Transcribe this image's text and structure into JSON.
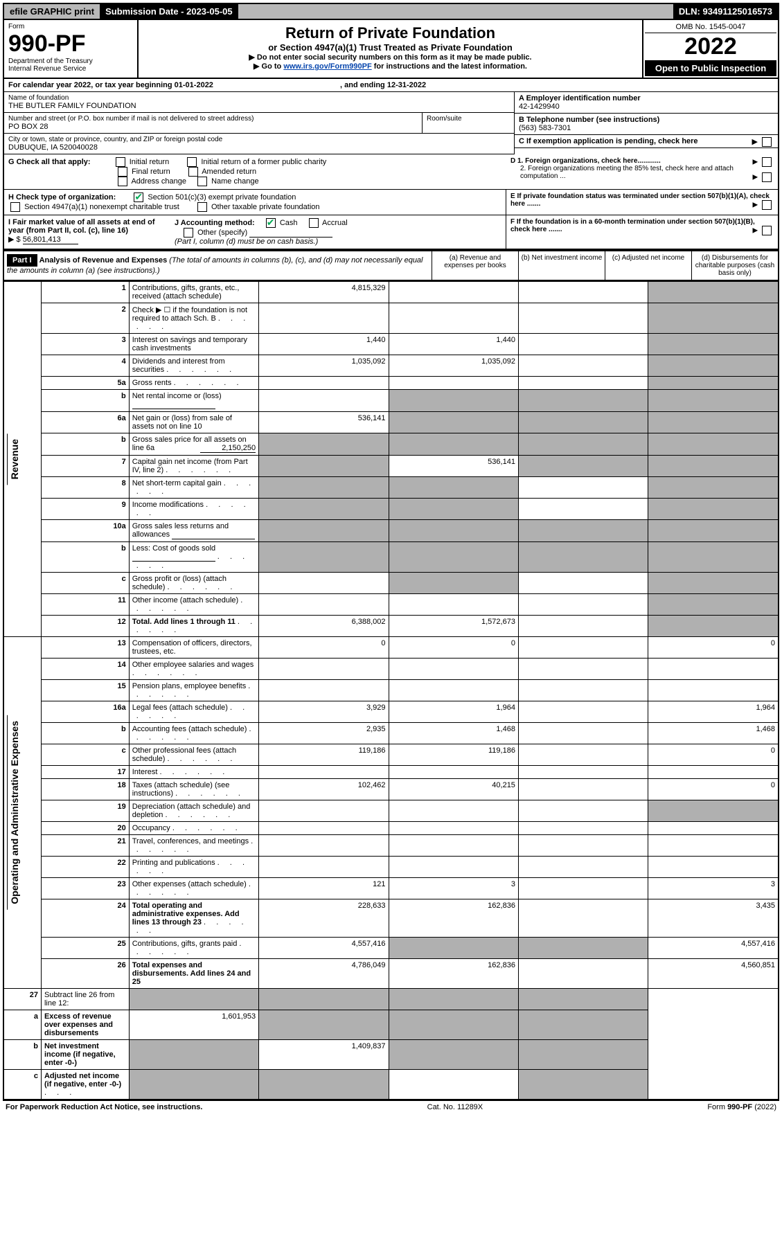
{
  "topbar": {
    "efile": "efile GRAPHIC print",
    "subdate_label": "Submission Date - ",
    "subdate": "2023-05-05",
    "dln_label": "DLN: ",
    "dln": "93491125016573"
  },
  "header": {
    "form_label": "Form",
    "form_no": "990-PF",
    "dept": "Department of the Treasury",
    "irs": "Internal Revenue Service",
    "title": "Return of Private Foundation",
    "subtitle": "or Section 4947(a)(1) Trust Treated as Private Foundation",
    "instr1": "▶ Do not enter social security numbers on this form as it may be made public.",
    "instr2_pre": "▶ Go to ",
    "instr2_link": "www.irs.gov/Form990PF",
    "instr2_post": " for instructions and the latest information.",
    "omb": "OMB No. 1545-0047",
    "year": "2022",
    "open": "Open to Public Inspection"
  },
  "calendar": {
    "text_pre": "For calendar year 2022, or tax year beginning ",
    "begin": "01-01-2022",
    "text_mid": " , and ending ",
    "end": "12-31-2022"
  },
  "entity": {
    "name_label": "Name of foundation",
    "name": "THE BUTLER FAMILY FOUNDATION",
    "addr_label": "Number and street (or P.O. box number if mail is not delivered to street address)",
    "addr": "PO BOX 28",
    "room_label": "Room/suite",
    "city_label": "City or town, state or province, country, and ZIP or foreign postal code",
    "city": "DUBUQUE, IA  520040028",
    "ein_label": "A Employer identification number",
    "ein": "42-1429940",
    "phone_label": "B Telephone number (see instructions)",
    "phone": "(563) 583-7301",
    "c_label": "C If exemption application is pending, check here",
    "d1": "D 1. Foreign organizations, check here............",
    "d2": "2. Foreign organizations meeting the 85% test, check here and attach computation ...",
    "e_label": "E  If private foundation status was terminated under section 507(b)(1)(A), check here .......",
    "f_label": "F  If the foundation is in a 60-month termination under section 507(b)(1)(B), check here ......."
  },
  "g": {
    "label": "G Check all that apply:",
    "opts": [
      "Initial return",
      "Initial return of a former public charity",
      "Final return",
      "Amended return",
      "Address change",
      "Name change"
    ]
  },
  "h": {
    "label": "H Check type of organization:",
    "opt1": "Section 501(c)(3) exempt private foundation",
    "opt2": "Section 4947(a)(1) nonexempt charitable trust",
    "opt3": "Other taxable private foundation"
  },
  "i": {
    "label": "I Fair market value of all assets at end of year (from Part II, col. (c), line 16)",
    "value": "56,801,413",
    "j_label": "J Accounting method:",
    "j_cash": "Cash",
    "j_accrual": "Accrual",
    "j_other": "Other (specify)",
    "j_note": "(Part I, column (d) must be on cash basis.)"
  },
  "part1": {
    "label": "Part I",
    "title": "Analysis of Revenue and Expenses",
    "note": " (The total of amounts in columns (b), (c), and (d) may not necessarily equal the amounts in column (a) (see instructions).)",
    "cols": {
      "a": "(a) Revenue and expenses per books",
      "b": "(b) Net investment income",
      "c": "(c) Adjusted net income",
      "d": "(d) Disbursements for charitable purposes (cash basis only)"
    }
  },
  "sides": {
    "revenue": "Revenue",
    "expenses": "Operating and Administrative Expenses"
  },
  "rows": [
    {
      "n": "1",
      "desc": "Contributions, gifts, grants, etc., received (attach schedule)",
      "a": "4,815,329",
      "b": "",
      "c": "",
      "d": "",
      "d_shade": true
    },
    {
      "n": "2",
      "desc": "Check ▶ ☐ if the foundation is not required to attach Sch. B",
      "a": "",
      "b": "",
      "c": "",
      "d": "",
      "c_shade": false,
      "d_shade": true,
      "merge_abcd": true,
      "dots": true
    },
    {
      "n": "3",
      "desc": "Interest on savings and temporary cash investments",
      "a": "1,440",
      "b": "1,440",
      "c": "",
      "d": "",
      "d_shade": true
    },
    {
      "n": "4",
      "desc": "Dividends and interest from securities",
      "a": "1,035,092",
      "b": "1,035,092",
      "c": "",
      "d": "",
      "d_shade": true,
      "dots": true
    },
    {
      "n": "5a",
      "desc": "Gross rents",
      "a": "",
      "b": "",
      "c": "",
      "d": "",
      "d_shade": true,
      "dots": true
    },
    {
      "n": "b",
      "desc": "Net rental income or (loss)",
      "a": "",
      "b": "",
      "c": "",
      "d": "",
      "b_shade": true,
      "c_shade": true,
      "d_shade": true,
      "inline_blank": true
    },
    {
      "n": "6a",
      "desc": "Net gain or (loss) from sale of assets not on line 10",
      "a": "536,141",
      "b": "",
      "c": "",
      "d": "",
      "b_shade": true,
      "c_shade": true,
      "d_shade": true
    },
    {
      "n": "b",
      "desc": "Gross sales price for all assets on line 6a",
      "inline_val": "2,150,250",
      "a": "",
      "b": "",
      "c": "",
      "d": "",
      "a_shade": true,
      "b_shade": true,
      "c_shade": true,
      "d_shade": true
    },
    {
      "n": "7",
      "desc": "Capital gain net income (from Part IV, line 2)",
      "a": "",
      "b": "536,141",
      "c": "",
      "d": "",
      "a_shade": true,
      "c_shade": true,
      "d_shade": true,
      "dots": true
    },
    {
      "n": "8",
      "desc": "Net short-term capital gain",
      "a": "",
      "b": "",
      "c": "",
      "d": "",
      "a_shade": true,
      "b_shade": true,
      "d_shade": true,
      "dots": true
    },
    {
      "n": "9",
      "desc": "Income modifications",
      "a": "",
      "b": "",
      "c": "",
      "d": "",
      "a_shade": true,
      "b_shade": true,
      "d_shade": true,
      "dots": true
    },
    {
      "n": "10a",
      "desc": "Gross sales less returns and allowances",
      "a": "",
      "b": "",
      "c": "",
      "d": "",
      "a_shade": true,
      "b_shade": true,
      "c_shade": true,
      "d_shade": true,
      "inline_blank": true
    },
    {
      "n": "b",
      "desc": "Less: Cost of goods sold",
      "a": "",
      "b": "",
      "c": "",
      "d": "",
      "a_shade": true,
      "b_shade": true,
      "c_shade": true,
      "d_shade": true,
      "inline_blank": true,
      "dots": true
    },
    {
      "n": "c",
      "desc": "Gross profit or (loss) (attach schedule)",
      "a": "",
      "b": "",
      "c": "",
      "d": "",
      "b_shade": true,
      "d_shade": true,
      "dots": true
    },
    {
      "n": "11",
      "desc": "Other income (attach schedule)",
      "a": "",
      "b": "",
      "c": "",
      "d": "",
      "d_shade": true,
      "dots": true
    },
    {
      "n": "12",
      "desc": "Total. Add lines 1 through 11",
      "a": "6,388,002",
      "b": "1,572,673",
      "c": "",
      "d": "",
      "d_shade": true,
      "bold": true,
      "dots": true
    }
  ],
  "exp_rows": [
    {
      "n": "13",
      "desc": "Compensation of officers, directors, trustees, etc.",
      "a": "0",
      "b": "0",
      "c": "",
      "d": "0"
    },
    {
      "n": "14",
      "desc": "Other employee salaries and wages",
      "a": "",
      "b": "",
      "c": "",
      "d": "",
      "dots": true
    },
    {
      "n": "15",
      "desc": "Pension plans, employee benefits",
      "a": "",
      "b": "",
      "c": "",
      "d": "",
      "dots": true
    },
    {
      "n": "16a",
      "desc": "Legal fees (attach schedule)",
      "a": "3,929",
      "b": "1,964",
      "c": "",
      "d": "1,964",
      "dots": true
    },
    {
      "n": "b",
      "desc": "Accounting fees (attach schedule)",
      "a": "2,935",
      "b": "1,468",
      "c": "",
      "d": "1,468",
      "dots": true
    },
    {
      "n": "c",
      "desc": "Other professional fees (attach schedule)",
      "a": "119,186",
      "b": "119,186",
      "c": "",
      "d": "0",
      "dots": true
    },
    {
      "n": "17",
      "desc": "Interest",
      "a": "",
      "b": "",
      "c": "",
      "d": "",
      "dots": true
    },
    {
      "n": "18",
      "desc": "Taxes (attach schedule) (see instructions)",
      "a": "102,462",
      "b": "40,215",
      "c": "",
      "d": "0",
      "dots": true
    },
    {
      "n": "19",
      "desc": "Depreciation (attach schedule) and depletion",
      "a": "",
      "b": "",
      "c": "",
      "d": "",
      "d_shade": true,
      "dots": true
    },
    {
      "n": "20",
      "desc": "Occupancy",
      "a": "",
      "b": "",
      "c": "",
      "d": "",
      "dots": true
    },
    {
      "n": "21",
      "desc": "Travel, conferences, and meetings",
      "a": "",
      "b": "",
      "c": "",
      "d": "",
      "dots": true
    },
    {
      "n": "22",
      "desc": "Printing and publications",
      "a": "",
      "b": "",
      "c": "",
      "d": "",
      "dots": true
    },
    {
      "n": "23",
      "desc": "Other expenses (attach schedule)",
      "a": "121",
      "b": "3",
      "c": "",
      "d": "3",
      "dots": true
    },
    {
      "n": "24",
      "desc": "Total operating and administrative expenses. Add lines 13 through 23",
      "a": "228,633",
      "b": "162,836",
      "c": "",
      "d": "3,435",
      "bold": true,
      "dots": true
    },
    {
      "n": "25",
      "desc": "Contributions, gifts, grants paid",
      "a": "4,557,416",
      "b": "",
      "c": "",
      "d": "4,557,416",
      "b_shade": true,
      "c_shade": true,
      "dots": true
    },
    {
      "n": "26",
      "desc": "Total expenses and disbursements. Add lines 24 and 25",
      "a": "4,786,049",
      "b": "162,836",
      "c": "",
      "d": "4,560,851",
      "bold": true
    }
  ],
  "net_rows": [
    {
      "n": "27",
      "desc": "Subtract line 26 from line 12:",
      "a": "",
      "b": "",
      "c": "",
      "d": "",
      "a_shade": true,
      "b_shade": true,
      "c_shade": true,
      "d_shade": true
    },
    {
      "n": "a",
      "desc": "Excess of revenue over expenses and disbursements",
      "a": "1,601,953",
      "b": "",
      "c": "",
      "d": "",
      "b_shade": true,
      "c_shade": true,
      "d_shade": true,
      "bold": true
    },
    {
      "n": "b",
      "desc": "Net investment income (if negative, enter -0-)",
      "a": "",
      "b": "1,409,837",
      "c": "",
      "d": "",
      "a_shade": true,
      "c_shade": true,
      "d_shade": true,
      "bold": true
    },
    {
      "n": "c",
      "desc": "Adjusted net income (if negative, enter -0-)",
      "a": "",
      "b": "",
      "c": "",
      "d": "",
      "a_shade": true,
      "b_shade": true,
      "d_shade": true,
      "bold": true,
      "dots": true
    }
  ],
  "footer": {
    "left": "For Paperwork Reduction Act Notice, see instructions.",
    "mid": "Cat. No. 11289X",
    "right": "Form 990-PF (2022)"
  }
}
